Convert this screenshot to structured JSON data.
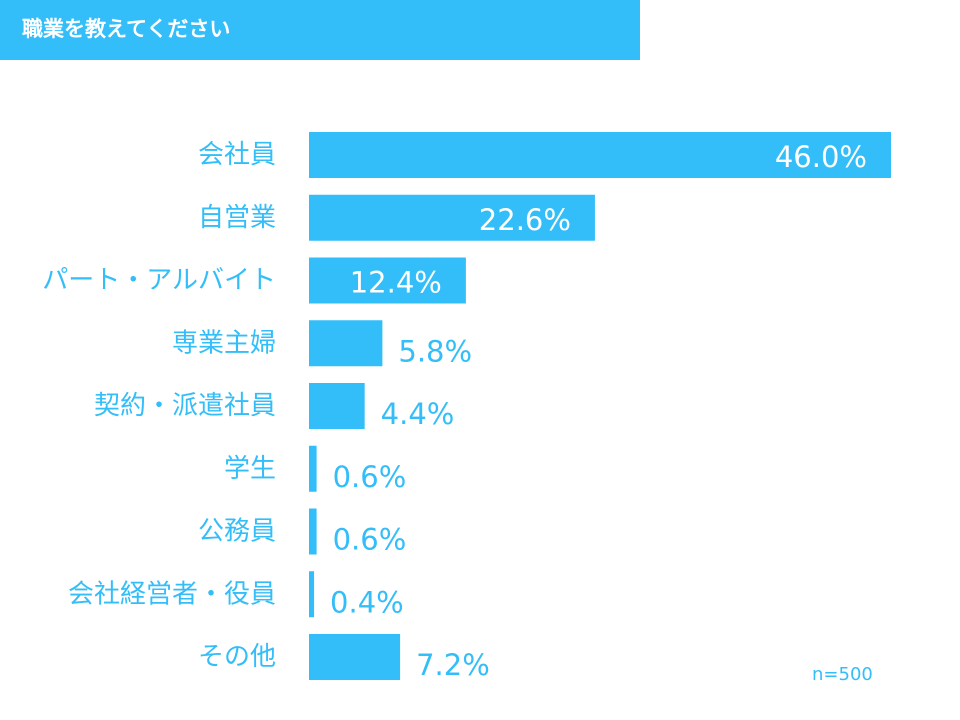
{
  "header": {
    "title": "職業を教えてください"
  },
  "colors": {
    "accent": "#33bef9",
    "label_text": "#33bef9",
    "inside_label_text": "#ffffff"
  },
  "chart_data": {
    "type": "bar",
    "orientation": "horizontal",
    "title": "職業を教えてください",
    "categories": [
      "会社員",
      "自営業",
      "パート・アルバイト",
      "専業主婦",
      "契約・派遣社員",
      "学生",
      "公務員",
      "会社経営者・役員",
      "その他"
    ],
    "values": [
      46.0,
      22.6,
      12.4,
      5.8,
      4.4,
      0.6,
      0.6,
      0.4,
      7.2
    ],
    "value_labels": [
      "46.0%",
      "22.6%",
      "12.4%",
      "5.8%",
      "4.4%",
      "0.6%",
      "0.6%",
      "0.4%",
      "7.2%"
    ],
    "unit": "%",
    "xlim": [
      0,
      46.0
    ],
    "grid": false,
    "legend": "none"
  },
  "sample_note": "n=500"
}
